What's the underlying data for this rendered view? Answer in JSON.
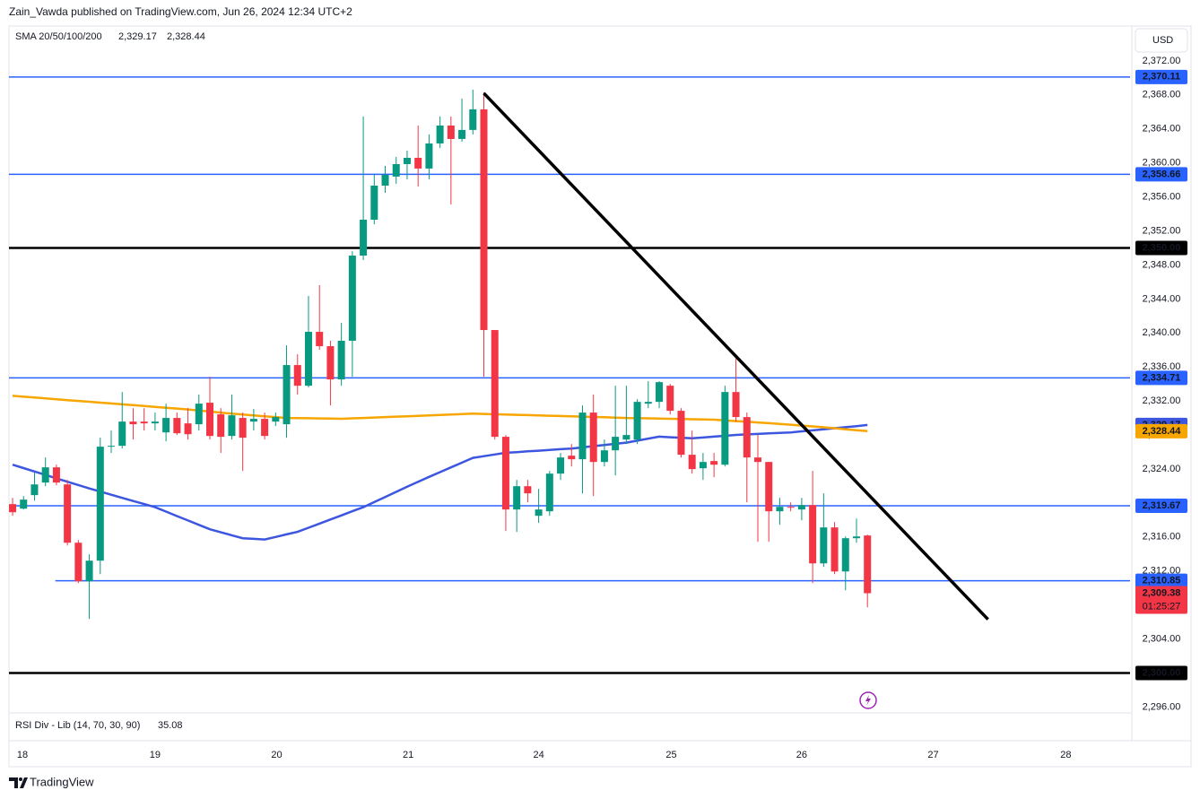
{
  "header": {
    "publisher": "Zain_Vawda published on TradingView.com, Jun 26, 2024 12:34 UTC+2",
    "currency": "USD",
    "footer": "TradingView"
  },
  "chart_data": {
    "type": "candlestick",
    "up_color": "#089981",
    "down_color": "#f23645",
    "xlim": [
      -0.33,
      101.96
    ],
    "xticks": [
      {
        "value": 0.9,
        "label": "18"
      },
      {
        "value": 13.0,
        "label": "19"
      },
      {
        "value": 24.1,
        "label": "20"
      },
      {
        "value": 36.1,
        "label": "21"
      },
      {
        "value": 48.0,
        "label": "24"
      },
      {
        "value": 60.1,
        "label": "25"
      },
      {
        "value": 72.0,
        "label": "26"
      },
      {
        "value": 84.0,
        "label": "27"
      },
      {
        "value": 96.1,
        "label": "28"
      }
    ],
    "ylim": [
      2295.3,
      2376
    ],
    "yticks": [
      {
        "value": 2296,
        "label": "2,296.00"
      },
      {
        "value": 2300,
        "label": "2,300.00"
      },
      {
        "value": 2304,
        "label": "2,304.00"
      },
      {
        "value": 2308,
        "label": "2,308.00"
      },
      {
        "value": 2312,
        "label": "2,312.00"
      },
      {
        "value": 2316,
        "label": "2,316.00"
      },
      {
        "value": 2320,
        "label": "2,320.00"
      },
      {
        "value": 2324,
        "label": "2,324.00"
      },
      {
        "value": 2328,
        "label": "2,328.00"
      },
      {
        "value": 2332,
        "label": "2,332.00"
      },
      {
        "value": 2336,
        "label": "2,336.00"
      },
      {
        "value": 2340,
        "label": "2,340.00"
      },
      {
        "value": 2344,
        "label": "2,344.00"
      },
      {
        "value": 2348,
        "label": "2,348.00"
      },
      {
        "value": 2352,
        "label": "2,352.00"
      },
      {
        "value": 2356,
        "label": "2,356.00"
      },
      {
        "value": 2360,
        "label": "2,360.00"
      },
      {
        "value": 2364,
        "label": "2,364.00"
      },
      {
        "value": 2368,
        "label": "2,368.00"
      },
      {
        "value": 2372,
        "label": "2,372.00"
      }
    ],
    "grid": false,
    "open": [
      2319.86,
      2319.33,
      2320.92,
      2322.4,
      2324.19,
      2322.18,
      2315.32,
      2310.78,
      2313.21,
      2326.62,
      2326.72,
      2329.57,
      2329.57,
      2329.36,
      2328.3,
      2330.0,
      2329.36,
      2329.26,
      2331.79,
      2330.42,
      2327.88,
      2330.0,
      2329.57,
      2329.89,
      2329.57,
      2329.26,
      2336.22,
      2333.79,
      2340.13,
      2338.44,
      2334.53,
      2339.08,
      2349.1,
      2353.32,
      2357.33,
      2358.39,
      2359.86,
      2360.6,
      2359.34,
      2362.29,
      2364.4,
      2362.82,
      2363.88,
      2366.3,
      2340.34,
      2327.78,
      2319.23,
      2321.97,
      2318.49,
      2319.02,
      2323.45,
      2325.56,
      2325.14,
      2330.63,
      2324.82,
      2326.19,
      2327.46,
      2327.46,
      2331.68,
      2331.89,
      2333.79,
      2330.84,
      2325.67,
      2324.08,
      2324.93,
      2324.5,
      2333.05,
      2330.1,
      2325.35,
      2324.82,
      2319.02,
      2319.54,
      2319.23,
      2319.75,
      2312.89,
      2317.12,
      2311.94,
      2315.85,
      2316.17
    ],
    "high": [
      2320.6,
      2320.81,
      2323.56,
      2325.35,
      2324.5,
      2322.71,
      2315.64,
      2313.95,
      2327.67,
      2328.52,
      2333.05,
      2331.15,
      2331.15,
      2330.63,
      2331.68,
      2330.63,
      2331.15,
      2332.74,
      2334.85,
      2331.15,
      2332.74,
      2330.63,
      2331.05,
      2330.63,
      2330.63,
      2338.54,
      2337.49,
      2344.35,
      2345.62,
      2339.08,
      2341.18,
      2349.62,
      2365.46,
      2358.6,
      2359.65,
      2360.71,
      2361.45,
      2364.4,
      2363.35,
      2365.46,
      2365.46,
      2367.57,
      2368.62,
      2368.31,
      2340.34,
      2327.99,
      2322.71,
      2322.71,
      2321.66,
      2323.77,
      2325.88,
      2326.93,
      2331.47,
      2332.74,
      2327.46,
      2333.79,
      2333.79,
      2332.21,
      2334.32,
      2334.32,
      2334.0,
      2331.15,
      2328.52,
      2325.88,
      2325.88,
      2333.79,
      2336.96,
      2330.63,
      2327.99,
      2324.82,
      2320.6,
      2320.07,
      2320.6,
      2323.77,
      2321.13,
      2317.75,
      2316.06,
      2318.17,
      2316.27
    ],
    "low": [
      2318.49,
      2319.23,
      2320.28,
      2321.97,
      2322.08,
      2315.0,
      2310.57,
      2306.35,
      2311.63,
      2325.88,
      2326.41,
      2327.46,
      2328.52,
      2328.52,
      2327.25,
      2327.99,
      2327.46,
      2328.52,
      2327.46,
      2325.88,
      2327.46,
      2323.77,
      2328.52,
      2327.46,
      2329.05,
      2327.67,
      2332.74,
      2333.58,
      2338.02,
      2331.47,
      2333.79,
      2334.85,
      2348.57,
      2352.79,
      2356.49,
      2357.54,
      2358.07,
      2357.23,
      2358.07,
      2361.76,
      2355.11,
      2362.5,
      2363.35,
      2334.85,
      2327.46,
      2316.7,
      2316.59,
      2320.07,
      2317.65,
      2318.49,
      2322.71,
      2324.29,
      2321.13,
      2320.81,
      2324.29,
      2323.24,
      2326.93,
      2326.93,
      2331.15,
      2331.15,
      2330.42,
      2325.35,
      2323.45,
      2322.71,
      2323.03,
      2324.29,
      2329.57,
      2320.07,
      2315.43,
      2315.43,
      2317.43,
      2319.02,
      2317.96,
      2310.57,
      2312.47,
      2311.63,
      2309.73,
      2315.32,
      2307.72
    ],
    "close": [
      2318.91,
      2320.39,
      2322.18,
      2324.19,
      2322.4,
      2315.32,
      2310.78,
      2313.21,
      2326.62,
      2326.72,
      2329.57,
      2329.26,
      2329.36,
      2329.57,
      2330.0,
      2328.2,
      2328.09,
      2331.68,
      2327.88,
      2327.78,
      2330.31,
      2327.67,
      2329.89,
      2327.88,
      2330.1,
      2336.22,
      2333.79,
      2340.13,
      2338.44,
      2334.53,
      2339.08,
      2349.1,
      2353.32,
      2357.33,
      2358.6,
      2359.86,
      2360.6,
      2359.34,
      2362.29,
      2364.4,
      2362.82,
      2363.88,
      2366.3,
      2340.34,
      2327.78,
      2319.23,
      2321.97,
      2321.13,
      2319.23,
      2323.45,
      2325.35,
      2325.14,
      2330.63,
      2324.82,
      2326.19,
      2327.78,
      2327.99,
      2331.89,
      2331.89,
      2334.21,
      2330.84,
      2325.67,
      2323.98,
      2324.82,
      2324.5,
      2333.05,
      2330.1,
      2325.35,
      2324.82,
      2319.02,
      2319.54,
      2319.44,
      2319.75,
      2312.89,
      2317.12,
      2311.94,
      2315.85,
      2316.06,
      2309.38
    ],
    "last_price_label": "2,309.38",
    "countdown": "01:25:27",
    "indicator": "SMA 20/50/100/200",
    "series": [
      {
        "color": "#3d56e0",
        "last_label": "2,329.17",
        "values": [
          2324.5,
          2324.1,
          2323.7,
          2323.3,
          2322.9,
          2322.5,
          2322.1,
          2321.7,
          2321.33,
          2320.97,
          2320.6,
          2320.23,
          2319.87,
          2319.5,
          2318.98,
          2318.46,
          2317.94,
          2317.42,
          2316.9,
          2316.55,
          2316.2,
          2315.85,
          2315.78,
          2315.7,
          2316.0,
          2316.3,
          2316.6,
          2317.08,
          2317.57,
          2318.05,
          2318.53,
          2319.02,
          2319.5,
          2320.1,
          2320.7,
          2321.3,
          2321.9,
          2322.5,
          2323.06,
          2323.62,
          2324.18,
          2324.74,
          2325.3,
          2325.5,
          2325.7,
          2325.9,
          2325.98,
          2326.07,
          2326.15,
          2326.23,
          2326.32,
          2326.4,
          2326.54,
          2326.68,
          2326.82,
          2326.96,
          2327.1,
          2327.33,
          2327.57,
          2327.8,
          2327.73,
          2327.67,
          2327.6,
          2327.7,
          2327.8,
          2327.9,
          2328.0,
          2328.06,
          2328.12,
          2328.18,
          2328.24,
          2328.3,
          2328.42,
          2328.54,
          2328.66,
          2328.79,
          2328.91,
          2329.04,
          2329.17
        ]
      },
      {
        "color": "#f7a600",
        "last_label": "2,328.44",
        "values": [
          2332.6,
          2332.5,
          2332.4,
          2332.3,
          2332.2,
          2332.1,
          2332.0,
          2331.9,
          2331.8,
          2331.7,
          2331.6,
          2331.5,
          2331.4,
          2331.3,
          2331.2,
          2331.1,
          2331.0,
          2330.88,
          2330.75,
          2330.63,
          2330.5,
          2330.4,
          2330.3,
          2330.2,
          2330.1,
          2330.0,
          2329.98,
          2329.96,
          2329.94,
          2329.92,
          2329.9,
          2329.95,
          2330.0,
          2330.05,
          2330.1,
          2330.15,
          2330.2,
          2330.25,
          2330.3,
          2330.35,
          2330.4,
          2330.45,
          2330.5,
          2330.47,
          2330.43,
          2330.4,
          2330.37,
          2330.33,
          2330.3,
          2330.26,
          2330.23,
          2330.19,
          2330.15,
          2330.11,
          2330.08,
          2330.04,
          2330.0,
          2329.98,
          2329.95,
          2329.93,
          2329.9,
          2329.88,
          2329.85,
          2329.83,
          2329.8,
          2329.72,
          2329.63,
          2329.55,
          2329.47,
          2329.38,
          2329.3,
          2329.2,
          2329.1,
          2329.0,
          2328.9,
          2328.79,
          2328.67,
          2328.56,
          2328.44
        ]
      }
    ],
    "levels": [
      {
        "value": 2370.11,
        "label": "2,370.11",
        "color": "#2962ff"
      },
      {
        "value": 2358.66,
        "label": "2,358.66",
        "color": "#2962ff"
      },
      {
        "value": 2350.0,
        "label": "2,350.00",
        "color": "#000000"
      },
      {
        "value": 2334.71,
        "label": "2,334.71",
        "color": "#2962ff"
      },
      {
        "value": 2319.67,
        "label": "2,319.67",
        "color": "#2962ff"
      },
      {
        "value": 2310.85,
        "label": "2,310.85",
        "color": "#2962ff",
        "x_start": 3.9
      },
      {
        "value": 2300.0,
        "label": "2,300.00",
        "color": "#000000"
      }
    ],
    "trendline": {
      "x": [
        43.0,
        89.0
      ],
      "y": [
        2368.2,
        2306.3
      ],
      "color": "#000000"
    },
    "oscillator": {
      "name": "RSI Div - Lib (14, 70, 30, 90)",
      "value": 35.08
    }
  }
}
